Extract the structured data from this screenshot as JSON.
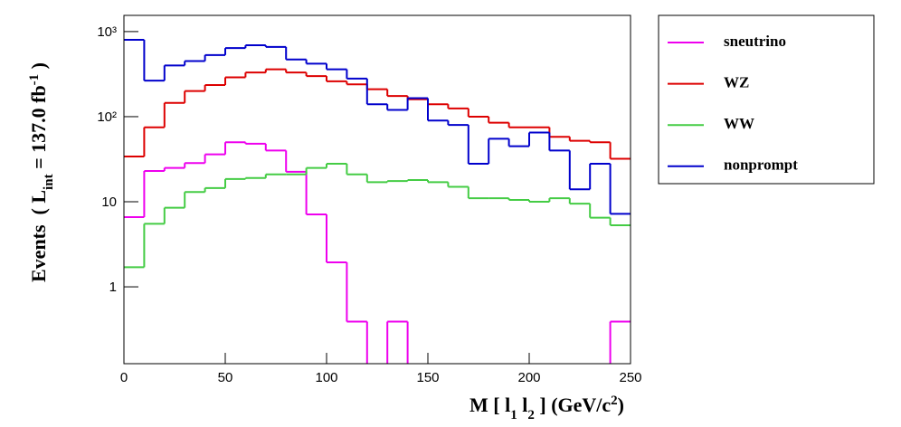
{
  "chart_data": {
    "type": "histogram",
    "xlabel_parts": [
      {
        "text": "M [ l"
      },
      {
        "text": "1",
        "shift": "sub"
      },
      {
        "text": " l"
      },
      {
        "text": "2",
        "shift": "sub"
      },
      {
        "text": " ] (GeV/c"
      },
      {
        "text": "2",
        "shift": "sup"
      },
      {
        "text": ")"
      }
    ],
    "ylabel_parts": [
      {
        "text": "Events  ( L"
      },
      {
        "text": "int",
        "shift": "sub"
      },
      {
        "text": " = 137.0 fb"
      },
      {
        "text": "-1",
        "shift": "sup"
      },
      {
        "text": " )"
      }
    ],
    "bins": [
      0,
      10,
      20,
      30,
      40,
      50,
      60,
      70,
      80,
      90,
      100,
      110,
      120,
      130,
      140,
      150,
      160,
      170,
      180,
      190,
      200,
      210,
      220,
      230,
      240,
      250
    ],
    "xlim": [
      0,
      250
    ],
    "xticks": [
      0,
      50,
      100,
      150,
      200,
      250
    ],
    "ylim": [
      0.125,
      1550
    ],
    "log_y": true,
    "yticks": [
      1,
      10,
      {
        "value": 100,
        "label": "10²"
      },
      {
        "value": 1000,
        "label": "10³"
      }
    ],
    "legend": "outside-top-right",
    "series": [
      {
        "name": "sneutrino",
        "color": "#ee00ee",
        "values": [
          6.6,
          23,
          25,
          28.5,
          36,
          50,
          48,
          40,
          22.5,
          7.1,
          1.94,
          0.39,
          0,
          0.39,
          0,
          0,
          0,
          0,
          0,
          0,
          0,
          0,
          0,
          0,
          0.39
        ]
      },
      {
        "name": "WZ",
        "color": "#dd0000",
        "values": [
          34,
          75,
          145,
          200,
          235,
          290,
          330,
          360,
          330,
          300,
          260,
          240,
          210,
          175,
          160,
          140,
          125,
          100,
          85,
          75,
          75,
          58,
          52,
          50,
          32
        ]
      },
      {
        "name": "WW",
        "color": "#44cc44",
        "values": [
          1.7,
          5.5,
          8.5,
          13,
          14.5,
          18.5,
          19,
          21,
          21,
          25,
          28,
          21,
          17,
          17.5,
          18,
          17,
          15,
          11,
          11,
          10.5,
          10,
          11,
          9.5,
          6.5,
          5.3
        ]
      },
      {
        "name": "nonprompt",
        "color": "#0000cc",
        "values": [
          800,
          265,
          400,
          450,
          530,
          640,
          690,
          660,
          470,
          420,
          360,
          280,
          140,
          120,
          165,
          90,
          80,
          28,
          55,
          45,
          65,
          40,
          14,
          28,
          7.2
        ]
      }
    ]
  }
}
